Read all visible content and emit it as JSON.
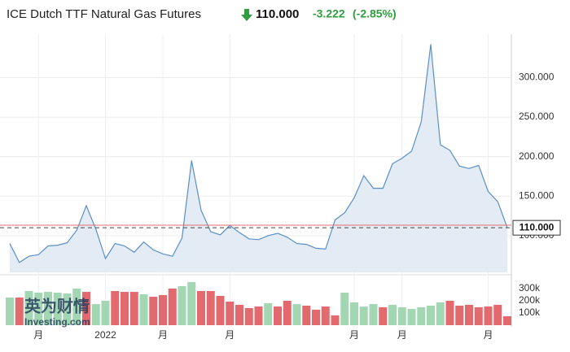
{
  "header": {
    "title": "ICE Dutch TTF Natural Gas Futures",
    "price": "110.000",
    "change": "-3.222",
    "change_pct": "(-2.85%)"
  },
  "watermark": [
    "英为财情",
    "Investing.com"
  ],
  "chart_data": {
    "type": "line",
    "categories": [
      null,
      null,
      null,
      "月",
      null,
      null,
      null,
      null,
      null,
      null,
      "2022",
      null,
      null,
      null,
      null,
      null,
      "月",
      null,
      null,
      null,
      null,
      null,
      null,
      "月",
      null,
      null,
      null,
      null,
      null,
      null,
      null,
      null,
      null,
      null,
      null,
      null,
      "月",
      null,
      null,
      null,
      null,
      "月",
      null,
      null,
      null,
      null,
      null,
      null,
      null,
      null,
      "月",
      null,
      null
    ],
    "series": [
      {
        "color": "#5b8fc7",
        "fill": "#e3ebf4",
        "values": [
          90,
          66,
          74,
          76,
          87,
          88,
          91,
          107,
          138,
          108,
          71,
          90,
          87,
          79,
          92,
          82,
          77,
          74,
          97,
          195,
          132,
          105,
          101,
          113,
          104,
          96,
          95,
          100,
          103,
          98,
          90,
          89,
          84,
          83,
          120,
          129,
          148,
          176,
          160,
          160,
          191,
          198,
          207,
          244,
          342,
          215,
          208,
          188,
          185,
          189,
          156,
          143,
          110
        ]
      }
    ],
    "reference_line": {
      "value": 113.222,
      "color": "#e07070"
    },
    "ylim": [
      53.6,
      355
    ],
    "yticks": [
      {
        "value": 100,
        "label": "100.000"
      },
      {
        "value": 150,
        "label": "150.000"
      },
      {
        "value": 200,
        "label": "200.000"
      },
      {
        "value": 250,
        "label": "250.000"
      },
      {
        "value": 300,
        "label": "300.000"
      }
    ],
    "grid": true,
    "volume": {
      "values": [
        227000,
        227000,
        280000,
        267000,
        273000,
        267000,
        260000,
        300000,
        273000,
        173000,
        200000,
        280000,
        273000,
        273000,
        253000,
        233000,
        247000,
        300000,
        320000,
        353000,
        280000,
        280000,
        240000,
        193000,
        167000,
        140000,
        153000,
        180000,
        153000,
        200000,
        173000,
        160000,
        127000,
        153000,
        80000,
        267000,
        187000,
        153000,
        173000,
        147000,
        167000,
        147000,
        133000,
        147000,
        160000,
        187000,
        200000,
        160000,
        167000,
        147000,
        153000,
        167000,
        73000
      ],
      "colors": [
        "#a3d6b3",
        "#e2696d",
        "#a3d6b3",
        "#a3d6b3",
        "#a3d6b3",
        "#a3d6b3",
        "#a3d6b3",
        "#a3d6b3",
        "#e2696d",
        "#a3d6b3",
        "#a3d6b3",
        "#e2696d",
        "#e2696d",
        "#e2696d",
        "#a3d6b3",
        "#e2696d",
        "#e2696d",
        "#e2696d",
        "#a3d6b3",
        "#a3d6b3",
        "#e2696d",
        "#e2696d",
        "#e2696d",
        "#e2696d",
        "#e2696d",
        "#e2696d",
        "#e2696d",
        "#a3d6b3",
        "#e2696d",
        "#e2696d",
        "#a3d6b3",
        "#e2696d",
        "#e2696d",
        "#e2696d",
        "#e2696d",
        "#a3d6b3",
        "#a3d6b3",
        "#a3d6b3",
        "#a3d6b3",
        "#e2696d",
        "#a3d6b3",
        "#a3d6b3",
        "#a3d6b3",
        "#a3d6b3",
        "#a3d6b3",
        "#a3d6b3",
        "#e2696d",
        "#e2696d",
        "#e2696d",
        "#e2696d",
        "#e2696d",
        "#e2696d",
        "#e2696d"
      ],
      "ylim": [
        0,
        400000
      ],
      "yticks": [
        {
          "value": 100000,
          "label": "100k"
        },
        {
          "value": 200000,
          "label": "200k"
        },
        {
          "value": 300000,
          "label": "300k"
        }
      ]
    }
  }
}
